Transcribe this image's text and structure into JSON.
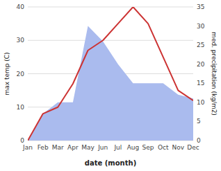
{
  "chart_data": {
    "type": "line",
    "xlabel": "date (month)",
    "ylabel": "max temp (C)",
    "y2label": "med. precipitation (kg/m2)",
    "categories": [
      "Jan",
      "Feb",
      "Mar",
      "Apr",
      "May",
      "Jun",
      "Jul",
      "Aug",
      "Sep",
      "Oct",
      "Nov",
      "Dec"
    ],
    "series": [
      {
        "type": "area",
        "axis": "y2",
        "color": "#aabbee",
        "values": [
          0,
          7,
          10,
          10,
          30,
          26,
          20,
          15,
          15,
          15,
          12,
          11
        ]
      },
      {
        "type": "line",
        "color": "#cc3333",
        "values": [
          0,
          8,
          10,
          17,
          27,
          30,
          35,
          40,
          35,
          25,
          15,
          12
        ]
      }
    ],
    "ylim": [
      0,
      40
    ],
    "yticks": [
      0,
      10,
      20,
      30,
      40
    ],
    "y2lim": [
      0,
      35
    ],
    "y2ticks": [
      0,
      5,
      10,
      15,
      20,
      25,
      30,
      35
    ],
    "grid": true
  }
}
